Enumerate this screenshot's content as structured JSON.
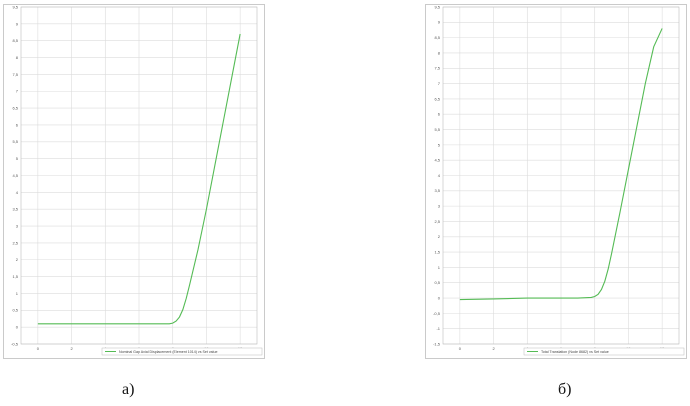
{
  "captions": {
    "a": "а)",
    "b": "б)"
  },
  "colors": {
    "series": "#55bb55",
    "grid": "#dcdcdc",
    "frame": "#bdbdbd"
  },
  "chart_data": [
    {
      "type": "line",
      "title": "",
      "xlabel": "",
      "ylabel": "",
      "xlim": [
        -1,
        13
      ],
      "ylim": [
        -0.5,
        9.5
      ],
      "x_ticks": [
        0,
        2,
        4,
        6,
        8,
        10,
        12
      ],
      "y_ticks": [
        -0.5,
        0,
        0.5,
        1,
        1.5,
        2,
        2.5,
        3,
        3.5,
        4,
        4.5,
        5,
        5.5,
        6,
        6.5,
        7,
        7.5,
        8,
        8.5,
        9,
        9.5
      ],
      "grid": true,
      "legend_position": "bottom-right",
      "series": [
        {
          "name": "Nominal Gap Axial Displacement (Element 1014) vs Set value",
          "x": [
            0,
            2,
            4,
            6,
            7,
            7.8,
            8,
            8.2,
            8.4,
            8.6,
            8.8,
            9,
            9.5,
            10,
            10.5,
            11,
            11.5,
            12
          ],
          "y": [
            0.1,
            0.1,
            0.1,
            0.1,
            0.1,
            0.1,
            0.12,
            0.18,
            0.3,
            0.52,
            0.85,
            1.25,
            2.3,
            3.5,
            4.8,
            6.1,
            7.4,
            8.7
          ]
        }
      ]
    },
    {
      "type": "line",
      "title": "",
      "xlabel": "",
      "ylabel": "",
      "xlim": [
        -1,
        13
      ],
      "ylim": [
        -1.5,
        9.5
      ],
      "x_ticks": [
        0,
        2,
        4,
        6,
        8,
        10,
        12
      ],
      "y_ticks": [
        -1.5,
        -1,
        -0.5,
        0,
        0.5,
        1,
        1.5,
        2,
        2.5,
        3,
        3.5,
        4,
        4.5,
        5,
        5.5,
        6,
        6.5,
        7,
        7.5,
        8,
        8.5,
        9,
        9.5
      ],
      "grid": true,
      "legend_position": "bottom-right",
      "series": [
        {
          "name": "Total Translation (Node 8682) vs Set value",
          "x": [
            0,
            2,
            4,
            6,
            7,
            7.8,
            8,
            8.2,
            8.4,
            8.6,
            8.8,
            9,
            9.5,
            10,
            10.5,
            11,
            11.5,
            12
          ],
          "y": [
            -0.05,
            -0.03,
            0,
            0,
            0,
            0.02,
            0.05,
            0.12,
            0.28,
            0.55,
            0.95,
            1.45,
            2.8,
            4.2,
            5.6,
            7.0,
            8.2,
            8.8
          ]
        }
      ]
    }
  ]
}
